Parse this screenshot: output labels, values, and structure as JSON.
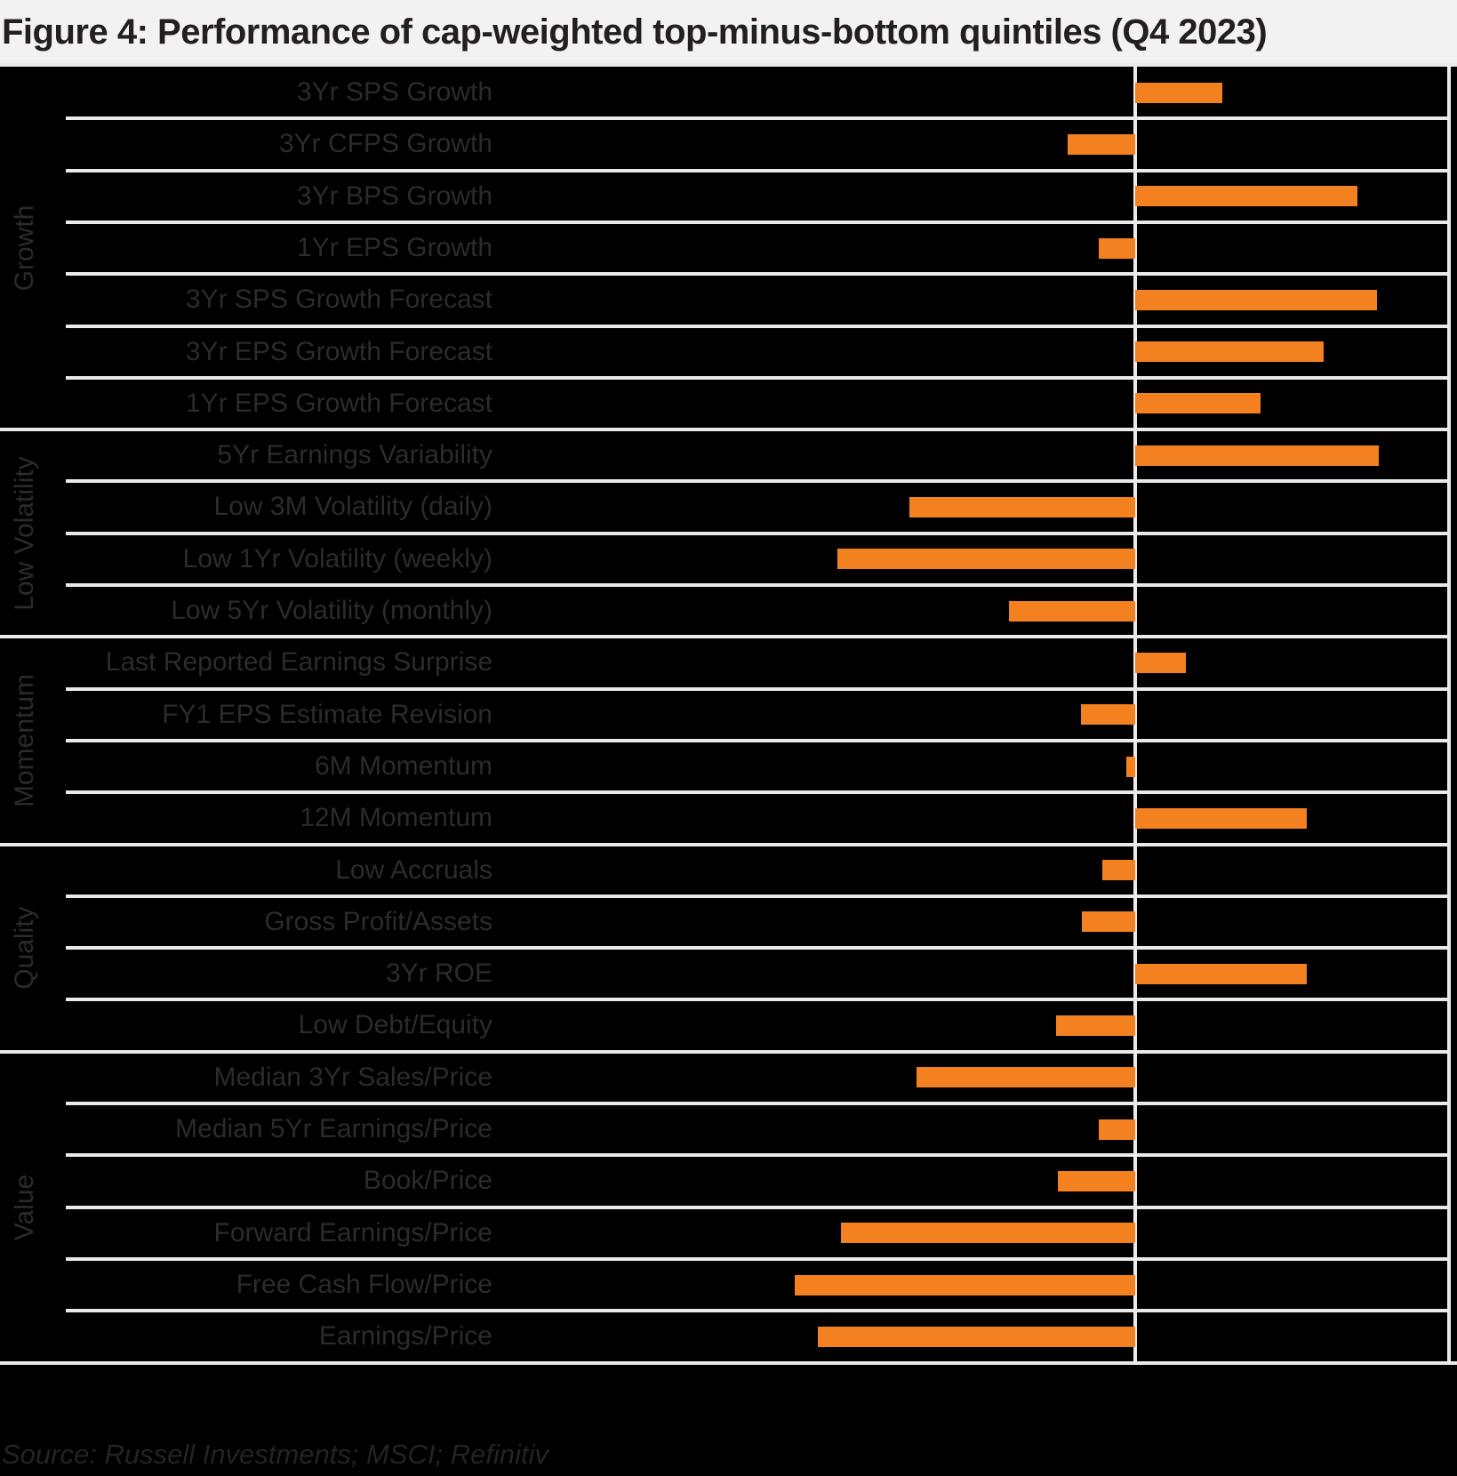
{
  "title": "Figure 4: Performance of cap-weighted top-minus-bottom quintiles (Q4 2023)",
  "source": "Source: Russell Investments; MSCI; Refinitiv",
  "colors": {
    "background": "#000000",
    "title_band": "#f3f2f2",
    "title_text": "#231f20",
    "grid_line": "#ebe9e9",
    "bar": "#f48120",
    "label_text": "#2e2a2b"
  },
  "chart_data": {
    "type": "bar",
    "orientation": "horizontal",
    "title": "Figure 4: Performance of cap-weighted top-minus-bottom quintiles (Q4 2023)",
    "xlabel": "",
    "ylabel": "",
    "axis_note": "no numeric axis shown; values are relative bar lengths measured in screenshot pixels from the zero line (positive = right of zero line)",
    "legend": "none",
    "grid": "horizontal row separators only",
    "groups": [
      {
        "name": "Growth",
        "items": [
          {
            "label": "3Yr SPS Growth",
            "value": 98
          },
          {
            "label": "3Yr CFPS Growth",
            "value": -76
          },
          {
            "label": "3Yr BPS Growth",
            "value": 250
          },
          {
            "label": "1Yr EPS Growth",
            "value": -41
          },
          {
            "label": "3Yr SPS Growth Forecast",
            "value": 272
          },
          {
            "label": "3Yr EPS Growth Forecast",
            "value": 212
          },
          {
            "label": "1Yr EPS Growth Forecast",
            "value": 141
          }
        ]
      },
      {
        "name": "Low Volatility",
        "items": [
          {
            "label": "5Yr Earnings Variability",
            "value": 274
          },
          {
            "label": "Low 3M Volatility (daily)",
            "value": -254
          },
          {
            "label": "Low 1Yr Volatility (weekly)",
            "value": -335
          },
          {
            "label": "Low 5Yr Volatility (monthly)",
            "value": -142
          }
        ]
      },
      {
        "name": "Momentum",
        "items": [
          {
            "label": "Last Reported Earnings Surprise",
            "value": 57
          },
          {
            "label": "FY1 EPS Estimate Revision",
            "value": -61
          },
          {
            "label": "6M Momentum",
            "value": -10
          },
          {
            "label": "12M Momentum",
            "value": 193
          }
        ]
      },
      {
        "name": "Quality",
        "items": [
          {
            "label": "Low Accruals",
            "value": -37
          },
          {
            "label": "Gross Profit/Assets",
            "value": -60
          },
          {
            "label": "3Yr ROE",
            "value": 193
          },
          {
            "label": "Low Debt/Equity",
            "value": -89
          }
        ]
      },
      {
        "name": "Value",
        "items": [
          {
            "label": "Median 3Yr Sales/Price",
            "value": -246
          },
          {
            "label": "Median 5Yr Earnings/Price",
            "value": -41
          },
          {
            "label": "Book/Price",
            "value": -87
          },
          {
            "label": "Forward Earnings/Price",
            "value": -331
          },
          {
            "label": "Free Cash Flow/Price",
            "value": -383
          },
          {
            "label": "Earnings/Price",
            "value": -357
          }
        ]
      }
    ]
  }
}
